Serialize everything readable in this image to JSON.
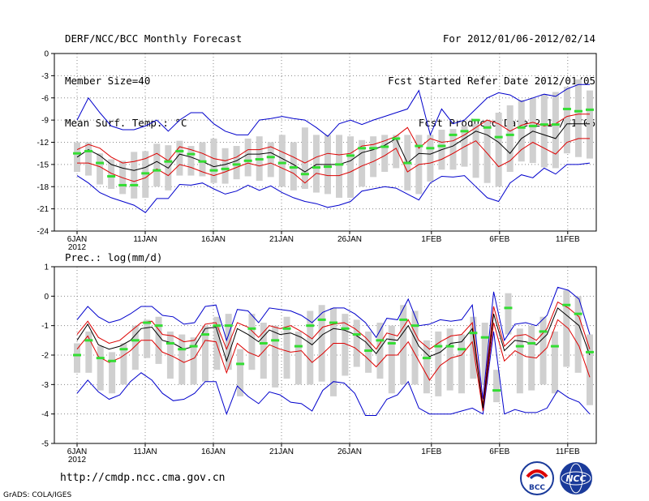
{
  "header": {
    "title": "DERF/NCC/BCC Monthly Forecast",
    "member_size": "Member Size=40",
    "variable": "Mean Surf. Temp.: °C",
    "period": "For 2012/01/06-2012/02/14",
    "started": "Fcst Started Refer Date 2012/01/05",
    "produced": "Fcst Produced Date 2012/01/06"
  },
  "footer": {
    "url": "http://cmdp.ncc.cma.gov.cn",
    "grads": "GrADS: COLA/IGES",
    "logo_left_text": "BCC",
    "logo_right_text": "NCC"
  },
  "colors": {
    "envelope": "#0000cc",
    "quartile": "#dd0000",
    "mean": "#000000",
    "box": "#d0d0d0",
    "median": "#33dd33"
  },
  "chart_data": [
    {
      "type": "line",
      "title": "Mean Surf. Temp.: °C",
      "x_tick_labels": [
        "6JAN",
        "11JAN",
        "16JAN",
        "21JAN",
        "26JAN",
        "1FEB",
        "6FEB",
        "11FEB"
      ],
      "x_year_label": "2012",
      "x_tick_days": [
        0,
        5,
        10,
        15,
        20,
        26,
        31,
        36
      ],
      "days": 40,
      "ylim": [
        -24,
        0
      ],
      "y_ticks": [
        0,
        -3,
        -6,
        -9,
        -12,
        -15,
        -18,
        -21,
        -24
      ],
      "series": [
        {
          "name": "max",
          "color": "#0000cc",
          "values": [
            -9,
            -6,
            -8,
            -9.8,
            -10.3,
            -10.3,
            -9.8,
            -9,
            -10.5,
            -9,
            -8,
            -8,
            -9.5,
            -10.5,
            -11,
            -11,
            -9,
            -8.8,
            -8.5,
            -8.8,
            -9,
            -10,
            -11.2,
            -9.5,
            -9,
            -9.6,
            -9,
            -8.5,
            -8,
            -7.5,
            -5,
            -11,
            -7.5,
            -9.5,
            -9,
            -7.5,
            -6,
            -5.3,
            -5.6,
            -6.5,
            -6,
            -5.5,
            -5.8,
            -4.8,
            -4.2,
            -4.2
          ]
        },
        {
          "name": "q75",
          "color": "#dd0000",
          "values": [
            -13,
            -12.3,
            -12.8,
            -14,
            -14.8,
            -14.6,
            -14.2,
            -13.5,
            -14.5,
            -12.6,
            -13,
            -13.5,
            -14.2,
            -14.5,
            -14,
            -13,
            -13,
            -12.6,
            -13.3,
            -14,
            -14.8,
            -14,
            -13.5,
            -13.7,
            -13.5,
            -12.5,
            -12.3,
            -11.8,
            -11.2,
            -10,
            -12.8,
            -11.5,
            -12,
            -11.8,
            -11,
            -10,
            -9,
            -9.5,
            -10.5,
            -9.7,
            -9.3,
            -9.8,
            -9.5,
            -8.5,
            -8.2,
            -8.2
          ]
        },
        {
          "name": "mean",
          "color": "#000000",
          "values": [
            -14,
            -13,
            -13.8,
            -15,
            -15.5,
            -15.8,
            -15.4,
            -14.6,
            -15.5,
            -13.6,
            -14,
            -14.6,
            -15.3,
            -15,
            -14.5,
            -13.6,
            -13.6,
            -13.4,
            -14.2,
            -15,
            -16,
            -15,
            -15,
            -15,
            -14.5,
            -13.4,
            -13,
            -12.4,
            -11.5,
            -14.8,
            -13.5,
            -13.6,
            -13,
            -12.5,
            -11.5,
            -10.5,
            -11,
            -12,
            -13.5,
            -11.5,
            -10.5,
            -11,
            -11.5,
            -9.5,
            -9.5,
            -9.5
          ]
        },
        {
          "name": "q25",
          "color": "#dd0000",
          "values": [
            -14.8,
            -14.8,
            -15.3,
            -16.2,
            -16.8,
            -17.3,
            -16.8,
            -15.6,
            -16.5,
            -15,
            -15.4,
            -16,
            -16.5,
            -16,
            -15.4,
            -14.8,
            -15.2,
            -14.8,
            -15.5,
            -16.2,
            -17.5,
            -16.2,
            -16.5,
            -16.5,
            -16,
            -15.2,
            -14.6,
            -13.8,
            -12.8,
            -16,
            -15,
            -14.8,
            -14.3,
            -13.5,
            -12.6,
            -11.8,
            -13.5,
            -15.3,
            -14.5,
            -13,
            -12,
            -12.8,
            -13.6,
            -12,
            -11.5,
            -11.5
          ]
        },
        {
          "name": "min",
          "color": "#0000cc",
          "values": [
            -16.5,
            -17.5,
            -18.8,
            -19.5,
            -20,
            -20.5,
            -21.5,
            -19.6,
            -19.6,
            -17.7,
            -17.8,
            -17.5,
            -18.3,
            -19,
            -18.6,
            -17.8,
            -18.5,
            -17.9,
            -18.8,
            -19.5,
            -20,
            -20.3,
            -20.8,
            -20.5,
            -20,
            -18.6,
            -18.3,
            -18,
            -18.2,
            -19,
            -19.8,
            -17.5,
            -16.6,
            -16.7,
            -16.5,
            -18,
            -19.5,
            -20,
            -17.5,
            -16.4,
            -16.8,
            -15.5,
            -16.3,
            -15,
            -15,
            -14.8
          ]
        },
        {
          "name": "median",
          "color": "#33dd33",
          "values": [
            -13.5,
            -13.2,
            -14.8,
            -16.6,
            -17.8,
            -17.8,
            -16.2,
            -15.8,
            -14.6,
            -13.2,
            -13.6,
            -14.6,
            -15.8,
            -15.6,
            -15,
            -14.5,
            -14.3,
            -14,
            -14.8,
            -15.4,
            -16.3,
            -15.4,
            -15.3,
            -15,
            -13.8,
            -12.8,
            -12.8,
            -12.6,
            -11.5,
            -14.8,
            -12.5,
            -12.8,
            -12.5,
            -11,
            -10.5,
            -9,
            -10,
            -11.3,
            -11,
            -10,
            -9.8,
            -9.6,
            -9.6,
            -7.5,
            -7.8,
            -7.6
          ]
        },
        {
          "name": "box_high",
          "color": "#d0d0d0",
          "values": [
            -12,
            -12,
            -13.5,
            -14.3,
            -14.5,
            -13.3,
            -13.2,
            -12.2,
            -12.4,
            -11.8,
            -12.5,
            -12,
            -11.5,
            -12.8,
            -12.5,
            -11.5,
            -11.2,
            -12,
            -11,
            -12,
            -10,
            -11,
            -11,
            -11,
            -11.2,
            -11.7,
            -11.2,
            -11,
            -11,
            -11,
            -11,
            -11,
            -10.3,
            -10.2,
            -9.8,
            -9.5,
            -9,
            -8,
            -7,
            -6.3,
            -6,
            -5.5,
            -5.2,
            -4.5,
            -3.5,
            -5
          ]
        },
        {
          "name": "box_low",
          "color": "#d0d0d0",
          "values": [
            -16,
            -16.5,
            -17.7,
            -18.3,
            -19,
            -19.6,
            -19.5,
            -18,
            -18.5,
            -16.5,
            -16.5,
            -16.6,
            -17.5,
            -17.6,
            -17,
            -16.6,
            -17.2,
            -16.7,
            -18,
            -18.5,
            -18.3,
            -18.8,
            -19,
            -19.5,
            -19.5,
            -18,
            -16.7,
            -16,
            -15.5,
            -18.5,
            -19,
            -17.3,
            -15.7,
            -15.7,
            -15.3,
            -16.8,
            -17.5,
            -18,
            -16,
            -14.6,
            -14.8,
            -15.4,
            -15.5,
            -13.5,
            -14,
            -14.2
          ]
        }
      ]
    },
    {
      "type": "line",
      "title": "Prec.: log(mm/d)",
      "x_tick_labels": [
        "6JAN",
        "11JAN",
        "16JAN",
        "21JAN",
        "26JAN",
        "1FEB",
        "6FEB",
        "11FEB"
      ],
      "x_year_label": "2012",
      "x_tick_days": [
        0,
        5,
        10,
        15,
        20,
        26,
        31,
        36
      ],
      "days": 40,
      "ylim": [
        -5,
        1
      ],
      "y_ticks": [
        1,
        0,
        -1,
        -2,
        -3,
        -4,
        -5
      ],
      "series": [
        {
          "name": "max",
          "color": "#0000cc",
          "values": [
            -0.8,
            -0.35,
            -0.7,
            -0.9,
            -0.8,
            -0.6,
            -0.35,
            -0.35,
            -0.65,
            -0.7,
            -0.95,
            -0.9,
            -0.35,
            -0.3,
            -1.5,
            -0.45,
            -0.5,
            -0.9,
            -0.4,
            -0.45,
            -0.5,
            -0.65,
            -0.9,
            -0.55,
            -0.4,
            -0.4,
            -0.6,
            -0.9,
            -1.4,
            -0.75,
            -0.8,
            -0.1,
            -1,
            -0.95,
            -0.8,
            -0.85,
            -0.8,
            -0.3,
            -3.5,
            0.15,
            -1.5,
            -0.95,
            -0.9,
            -1,
            -0.65,
            0.3,
            0.2,
            -0.1,
            -1.3
          ]
        },
        {
          "name": "q75",
          "color": "#dd0000",
          "values": [
            -1.3,
            -0.85,
            -1.4,
            -1.6,
            -1.5,
            -1.2,
            -0.9,
            -0.85,
            -1.3,
            -1.35,
            -1.55,
            -1.5,
            -0.95,
            -0.9,
            -1.8,
            -0.9,
            -1.05,
            -1.4,
            -1,
            -1.1,
            -1,
            -1.2,
            -1.45,
            -1.05,
            -0.95,
            -0.9,
            -1.1,
            -1.4,
            -1.8,
            -1.25,
            -1.35,
            -0.8,
            -1.5,
            -1.8,
            -1.55,
            -1.35,
            -1.3,
            -0.9,
            -3.7,
            -0.35,
            -1.7,
            -1.35,
            -1.3,
            -1.5,
            -1.1,
            -0.2,
            -0.4,
            -0.7,
            -1.8
          ]
        },
        {
          "name": "mean",
          "color": "#000000",
          "values": [
            -1.5,
            -0.95,
            -1.65,
            -1.8,
            -1.7,
            -1.5,
            -1.1,
            -1.05,
            -1.5,
            -1.6,
            -1.8,
            -1.7,
            -1.1,
            -1.05,
            -2.2,
            -1.1,
            -1.3,
            -1.55,
            -1.15,
            -1.3,
            -1.25,
            -1.4,
            -1.65,
            -1.3,
            -1.1,
            -1.15,
            -1.3,
            -1.55,
            -1.95,
            -1.45,
            -1.5,
            -1,
            -1.7,
            -2.05,
            -1.9,
            -1.6,
            -1.55,
            -1.1,
            -3.8,
            -0.6,
            -1.85,
            -1.5,
            -1.55,
            -1.65,
            -1.3,
            -0.4,
            -0.7,
            -1,
            -2
          ]
        },
        {
          "name": "q25",
          "color": "#dd0000",
          "values": [
            -1.8,
            -1.35,
            -2.05,
            -2.25,
            -2.1,
            -1.85,
            -1.5,
            -1.5,
            -1.9,
            -2.05,
            -2.25,
            -2.1,
            -1.5,
            -1.55,
            -2.6,
            -1.6,
            -1.9,
            -2.05,
            -1.65,
            -1.8,
            -1.9,
            -1.85,
            -2.25,
            -1.95,
            -1.6,
            -1.6,
            -1.75,
            -2.05,
            -2.4,
            -2,
            -2,
            -1.55,
            -2.2,
            -2.85,
            -2.35,
            -2.1,
            -2,
            -1.55,
            -3.9,
            -0.9,
            -2.2,
            -1.85,
            -2.05,
            -2.1,
            -1.75,
            -0.8,
            -1.1,
            -1.7,
            -2.75
          ]
        },
        {
          "name": "min",
          "color": "#0000cc",
          "values": [
            -3.3,
            -2.85,
            -3.25,
            -3.5,
            -3.35,
            -2.9,
            -2.6,
            -2.85,
            -3.3,
            -3.55,
            -3.5,
            -3.3,
            -2.9,
            -2.9,
            -4,
            -3.05,
            -3.4,
            -3.65,
            -3.25,
            -3.35,
            -3.6,
            -3.65,
            -3.9,
            -3.2,
            -2.9,
            -2.95,
            -3.3,
            -4.05,
            -4.05,
            -3.5,
            -3.35,
            -2.9,
            -3.8,
            -4,
            -4,
            -4,
            -3.9,
            -3.8,
            -4,
            -1.2,
            -4,
            -3.85,
            -3.95,
            -3.95,
            -3.8,
            -3.2,
            -3.45,
            -3.6,
            -4
          ]
        },
        {
          "name": "median",
          "color": "#33dd33",
          "values": [
            -2,
            -1.5,
            -2.1,
            -2.2,
            -1.8,
            -1.5,
            -0.9,
            -1,
            -1.6,
            -1.8,
            -1.7,
            -1.3,
            -1,
            -1,
            -2.3,
            -1.1,
            -1.6,
            -1.5,
            -1.1,
            -1.7,
            -1,
            -0.8,
            -0.9,
            -1.1,
            -1.3,
            -1.85,
            -1.5,
            -1.6,
            -0.8,
            -1,
            -2.1,
            -1.7,
            -1.7,
            -1.8,
            -1.25,
            -1.4,
            -3.2,
            -0.4,
            -1.7,
            -1.6,
            -1.2,
            -1.7,
            -0.3,
            -0.6,
            -1.9
          ]
        },
        {
          "name": "box_high",
          "color": "#d0d0d0",
          "values": [
            -1.6,
            -1.2,
            -1.7,
            -1.9,
            -1.6,
            -1,
            -0.8,
            -0.7,
            -1.2,
            -1.3,
            -1.4,
            -1,
            -0.7,
            -0.6,
            -1.8,
            -0.6,
            -0.9,
            -1,
            -0.7,
            -1.2,
            -0.5,
            -0.3,
            -0.4,
            -0.6,
            -0.8,
            -1.2,
            -0.9,
            -1,
            -0.3,
            -0.5,
            -1.5,
            -1.2,
            -1.1,
            -1.3,
            -0.7,
            -0.9,
            -2.5,
            0.1,
            -1.1,
            -1,
            -0.7,
            -1.2,
            0.2,
            0,
            -1.3
          ]
        },
        {
          "name": "box_low",
          "color": "#d0d0d0",
          "values": [
            -2.6,
            -2.6,
            -3.2,
            -3.3,
            -3,
            -2.5,
            -2.1,
            -2.3,
            -2.8,
            -3,
            -3,
            -2.9,
            -2.5,
            -2.5,
            -3.4,
            -2.5,
            -2.8,
            -3.1,
            -2.8,
            -3,
            -3,
            -2.9,
            -3.4,
            -2.7,
            -2.4,
            -2.6,
            -2.8,
            -3.3,
            -3,
            -3,
            -3.3,
            -3.4,
            -3.2,
            -3.3,
            -2.8,
            -3,
            -3.6,
            -1.3,
            -3.3,
            -3.2,
            -3,
            -3.3,
            -2.4,
            -2.6,
            -3.7
          ]
        }
      ]
    }
  ]
}
